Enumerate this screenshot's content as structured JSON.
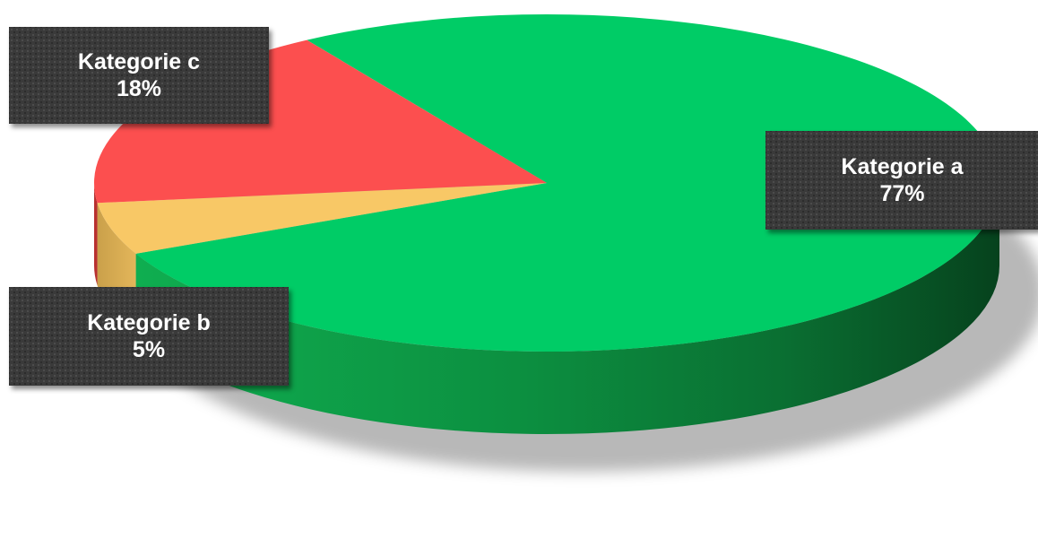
{
  "chart_data": {
    "type": "pie",
    "title": "",
    "slices": [
      {
        "label": "Kategorie a",
        "value": 77,
        "value_label": "77%",
        "color": "#00cc66",
        "side_color": "#0a8a3e"
      },
      {
        "label": "Kategorie b",
        "value": 5,
        "value_label": "5%",
        "color": "#f8c866",
        "side_color": "#c99a3c"
      },
      {
        "label": "Kategorie c",
        "value": 18,
        "value_label": "18%",
        "color": "#fc4f4f",
        "side_color": "#b83030"
      }
    ],
    "style": "3d",
    "legend": "none",
    "data_labels": "category and percentage"
  }
}
